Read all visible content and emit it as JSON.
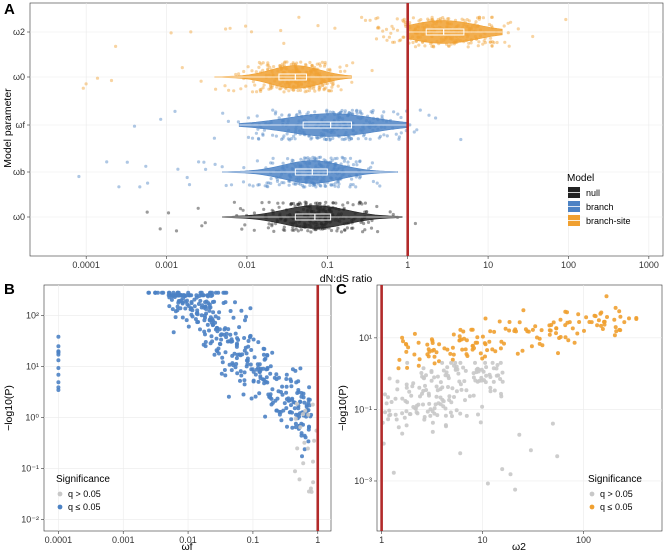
{
  "chart_data": [
    {
      "panel": "A",
      "type": "violin",
      "title": "",
      "xlabel": "dN:dS ratio",
      "ylabel": "Model parameter",
      "x_scale": "log10",
      "xlim": [
        2e-05,
        1500
      ],
      "x_ticks": [
        "0.0001",
        "0.001",
        "0.01",
        "0.1",
        "1",
        "10",
        "100",
        "1000"
      ],
      "x_tick_values": [
        0.0001,
        0.001,
        0.01,
        0.1,
        1,
        10,
        100,
        1000
      ],
      "categories": [
        "ω2",
        "ω0",
        "ωf",
        "ωb",
        "ω0"
      ],
      "category_models": [
        "branch-site",
        "branch-site",
        "branch",
        "branch",
        "null"
      ],
      "distributions": [
        {
          "param": "ω2",
          "model": "branch-site",
          "q1": 1.7,
          "median": 2.8,
          "q3": 5.0,
          "min": 1.0,
          "max": 15
        },
        {
          "param": "ω0",
          "model": "branch-site",
          "q1": 0.025,
          "median": 0.04,
          "q3": 0.055,
          "min": 0.004,
          "max": 0.2
        },
        {
          "param": "ωf",
          "model": "branch",
          "q1": 0.05,
          "median": 0.11,
          "q3": 0.2,
          "min": 0.008,
          "max": 1.0
        },
        {
          "param": "ωb",
          "model": "branch",
          "q1": 0.04,
          "median": 0.065,
          "q3": 0.1,
          "min": 0.005,
          "max": 0.75
        },
        {
          "param": "ω0",
          "model": "null",
          "q1": 0.04,
          "median": 0.07,
          "q3": 0.11,
          "min": 0.005,
          "max": 0.85
        }
      ],
      "reference_line": 1,
      "legend": {
        "title": "Model",
        "entries": [
          "null",
          "branch",
          "branch-site"
        ],
        "position": "right"
      },
      "colors": {
        "null": "#222222",
        "branch": "#4c82c4",
        "branch-site": "#f0a030",
        "ref": "#b22a2a"
      }
    },
    {
      "panel": "B",
      "type": "scatter",
      "xlabel": "ωf",
      "ylabel": "−log10(P)",
      "x_scale": "log10",
      "y_scale": "log10",
      "xlim": [
        6e-05,
        1.6
      ],
      "ylim": [
        0.006,
        400
      ],
      "x_ticks": [
        "0.0001",
        "0.001",
        "0.01",
        "0.1",
        "1"
      ],
      "x_tick_values": [
        0.0001,
        0.001,
        0.01,
        0.1,
        1
      ],
      "y_ticks": [
        "10⁻²",
        "10⁻¹",
        "10⁰",
        "10¹",
        "10²"
      ],
      "y_tick_values": [
        0.01,
        0.1,
        1,
        10,
        100
      ],
      "reference_line": 1,
      "legend": {
        "title": "Significance",
        "entries": [
          "q > 0.05",
          "q ≤ 0.05"
        ],
        "position": "bottom-left"
      },
      "colors": {
        "ns": "#c8c8c8",
        "sig": "#4c82c4",
        "ref": "#b22a2a"
      }
    },
    {
      "panel": "C",
      "type": "scatter",
      "xlabel": "ω2",
      "ylabel": "−log10(P)",
      "x_scale": "log10",
      "y_scale": "log10",
      "xlim": [
        0.9,
        600
      ],
      "ylim": [
        4e-05,
        300
      ],
      "x_ticks": [
        "1",
        "10",
        "100"
      ],
      "x_tick_values": [
        1,
        10,
        100
      ],
      "y_ticks": [
        "10⁻³",
        "10⁻¹",
        "10¹"
      ],
      "y_tick_values": [
        0.001,
        0.1,
        10
      ],
      "reference_line": 1,
      "legend": {
        "title": "Significance",
        "entries": [
          "q > 0.05",
          "q ≤ 0.05"
        ],
        "position": "bottom-right"
      },
      "colors": {
        "ns": "#c8c8c8",
        "sig": "#f0a030",
        "ref": "#b22a2a"
      }
    }
  ],
  "labels": {
    "a": "A",
    "b": "B",
    "c": "C"
  }
}
